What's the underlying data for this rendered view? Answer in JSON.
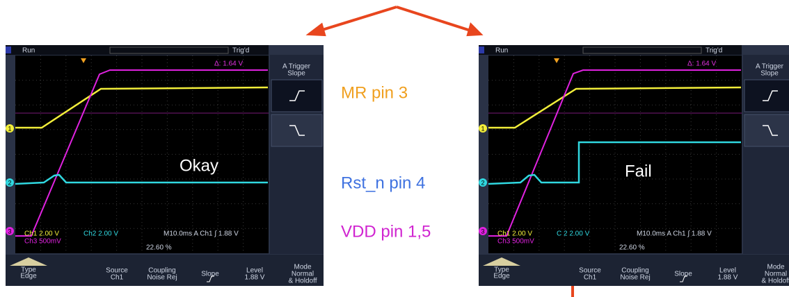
{
  "annotations": {
    "mr": "MR pin 3",
    "rst": "Rst_n pin 4",
    "vdd": "VDD pin 1,5"
  },
  "scopes": [
    {
      "result": "Okay",
      "status": {
        "run": "Run",
        "trig": "Trig'd"
      },
      "side_menu": [
        "A Trigger",
        "Slope"
      ],
      "cursor": "Δ: 1.64 V",
      "readouts": {
        "ch1": "Ch1  2.00 V",
        "ch2": "Ch2  2.00 V",
        "timebase": "M10.0ms  A  Ch1  ∫   1.88 V",
        "ch3": "Ch3  500mV",
        "trigger_pos": "22.60 %"
      },
      "markers": [
        "1",
        "2",
        "3"
      ],
      "bottom_menu": [
        [
          "Type",
          "Edge"
        ],
        [
          "Source",
          "Ch1"
        ],
        [
          "Coupling",
          "Noise Rej"
        ],
        [
          "Slope"
        ],
        [
          "Level",
          "1.88 V"
        ],
        [
          "Mode",
          "Normal",
          "& Holdoff"
        ]
      ]
    },
    {
      "result": "Fail",
      "status": {
        "run": "Run",
        "trig": "Trig'd"
      },
      "side_menu": [
        "A Trigger",
        "Slope"
      ],
      "cursor": "Δ: 1.64 V",
      "readouts": {
        "ch1": "Ch1  2.00 V",
        "ch2": "C 2  2.00 V",
        "timebase": "M10.0ms  A  Ch1  ∫   1.88 V",
        "ch3": "Ch3  500mV",
        "trigger_pos": "22.60 %"
      },
      "markers": [
        "1",
        "2",
        "3"
      ],
      "bottom_menu": [
        [
          "Type",
          "Edge"
        ],
        [
          "Source",
          "Ch1"
        ],
        [
          "Coupling",
          "Noise Rej"
        ],
        [
          "Slope"
        ],
        [
          "Level",
          "1.88 V"
        ],
        [
          "Mode",
          "Normal",
          "& Holdoff"
        ]
      ]
    }
  ]
}
